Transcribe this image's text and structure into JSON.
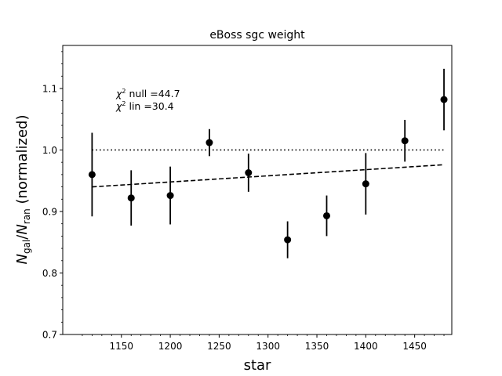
{
  "chart_data": {
    "type": "scatter",
    "title": "eBoss sgc weight",
    "xlabel": "star",
    "ylabel": {
      "prefix_main": "N",
      "prefix_sub": "gal",
      "slash": "/",
      "denom_main": "N",
      "denom_sub": "ran",
      "suffix": " (normalized)"
    },
    "xlim": [
      1090,
      1488
    ],
    "ylim": [
      0.7,
      1.17
    ],
    "x_ticks": [
      1150,
      1200,
      1250,
      1300,
      1350,
      1400,
      1450
    ],
    "x_tick_labels": [
      "1150",
      "1200",
      "1250",
      "1300",
      "1350",
      "1400",
      "1450"
    ],
    "y_ticks": [
      0.7,
      0.8,
      0.9,
      1.0,
      1.1
    ],
    "y_tick_labels": [
      "0.7",
      "0.8",
      "0.9",
      "1.0",
      "1.1"
    ],
    "grid": false,
    "series": [
      {
        "style": "points-with-errorbars",
        "color": "#000000",
        "x": [
          1120,
          1160,
          1200,
          1240,
          1280,
          1320,
          1360,
          1400,
          1440,
          1480
        ],
        "y": [
          0.96,
          0.922,
          0.926,
          1.012,
          0.963,
          0.854,
          0.893,
          0.945,
          1.015,
          1.082
        ],
        "yerr": [
          0.068,
          0.045,
          0.047,
          0.022,
          0.031,
          0.03,
          0.033,
          0.05,
          0.034,
          0.05
        ]
      },
      {
        "style": "dotted-line",
        "color": "#000000",
        "x": [
          1120,
          1480
        ],
        "y": [
          1.0,
          1.0
        ]
      },
      {
        "style": "dashed-line",
        "color": "#000000",
        "x": [
          1120,
          1480
        ],
        "y": [
          0.94,
          0.976
        ]
      }
    ],
    "annotations": [
      {
        "chi": "χ",
        "sup": "2",
        "text": " null =44.7"
      },
      {
        "chi": "χ",
        "sup": "2",
        "text": " lin =30.4"
      }
    ]
  }
}
